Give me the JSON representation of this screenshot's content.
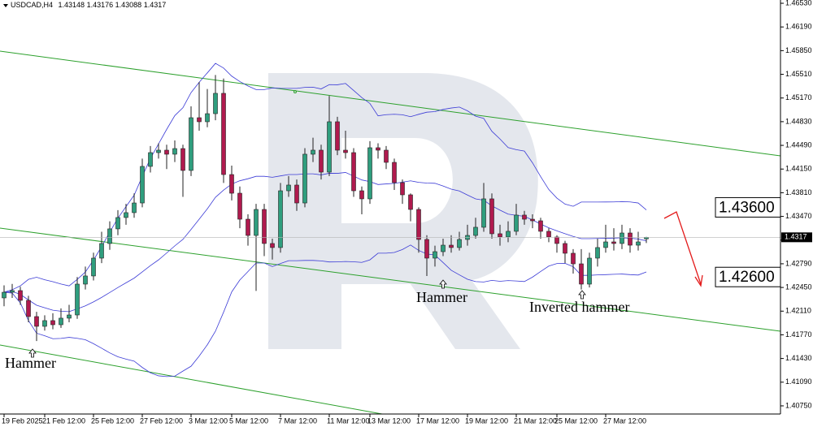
{
  "chart_data": {
    "type": "candlestick",
    "symbol": "USDCAD,H4",
    "categories": [
      "19 Feb 2025",
      null,
      null,
      null,
      null,
      "21 Feb 12:00",
      null,
      null,
      null,
      null,
      null,
      "25 Feb 12:00",
      null,
      null,
      null,
      null,
      null,
      "27 Feb 12:00",
      null,
      null,
      null,
      null,
      null,
      "3 Mar 12:00",
      null,
      null,
      null,
      null,
      "5 Mar 12:00",
      null,
      null,
      null,
      null,
      null,
      "7 Mar 12:00",
      null,
      null,
      null,
      null,
      null,
      "11 Mar 12:00",
      null,
      null,
      null,
      null,
      "13 Mar 12:00",
      null,
      null,
      null,
      null,
      null,
      "17 Mar 12:00",
      null,
      null,
      null,
      null,
      null,
      "19 Mar 12:00",
      null,
      null,
      null,
      null,
      null,
      "21 Mar 12:00",
      null,
      null,
      null,
      null,
      "25 Mar 12:00",
      null,
      null,
      null,
      null,
      null,
      "27 Mar 12:00",
      null,
      null,
      null,
      null,
      null
    ],
    "open": [
      1.423,
      1.42381,
      1.42405,
      1.42265,
      1.42032,
      1.41892,
      1.41974,
      1.41915,
      1.42009,
      1.42055,
      1.42498,
      1.42615,
      1.42871,
      1.43081,
      1.43291,
      1.43454,
      1.43524,
      1.43663,
      1.44188,
      1.44386,
      1.44421,
      1.44363,
      1.44444,
      1.4413,
      1.44887,
      1.44829,
      1.44945,
      1.45237,
      1.44071,
      1.43803,
      1.4343,
      1.43197,
      1.4357,
      1.43081,
      1.43023,
      1.43838,
      1.4392,
      1.43663,
      1.44363,
      1.44421,
      1.44106,
      1.44829,
      1.44421,
      1.44386,
      1.43838,
      1.43722,
      1.44456,
      1.44421,
      1.44246,
      1.43955,
      1.4378,
      1.4357,
      1.43139,
      1.42871,
      1.42964,
      1.43057,
      1.43023,
      1.43139,
      1.43197,
      1.43314,
      1.43722,
      1.43221,
      1.43174,
      1.43256,
      1.43489,
      1.4343,
      1.43407,
      1.43256,
      1.43174,
      1.43081,
      1.42941,
      1.42789,
      1.42498,
      1.42871,
      1.43023,
      1.43104,
      1.43081,
      1.43232,
      1.43057,
      1.43148
    ],
    "high": [
      1.4248,
      1.425,
      1.4246,
      1.4233,
      1.421,
      1.4205,
      1.4208,
      1.4215,
      1.422,
      1.426,
      1.4275,
      1.4295,
      1.4325,
      1.434,
      1.4356,
      1.4365,
      1.438,
      1.443,
      1.4448,
      1.4452,
      1.445,
      1.4456,
      1.445,
      1.4505,
      1.454,
      1.453,
      1.455,
      1.4545,
      1.442,
      1.439,
      1.435,
      1.4365,
      1.4365,
      1.4315,
      1.4395,
      1.4405,
      1.44,
      1.4445,
      1.446,
      1.445,
      1.452,
      1.449,
      1.447,
      1.4445,
      1.439,
      1.4455,
      1.4452,
      1.4448,
      1.443,
      1.44,
      1.438,
      1.436,
      1.432,
      1.4305,
      1.4315,
      1.432,
      1.4325,
      1.4335,
      1.4345,
      1.4395,
      1.438,
      1.4335,
      1.434,
      1.4365,
      1.4355,
      1.435,
      1.4345,
      1.433,
      1.432,
      1.4312,
      1.43,
      1.43,
      1.4295,
      1.4315,
      1.4335,
      1.433,
      1.4335,
      1.433,
      1.4325,
      1.43176
    ],
    "low": [
      1.4218,
      1.423,
      1.422,
      1.4195,
      1.41681,
      1.4183,
      1.4185,
      1.4187,
      1.4195,
      1.42,
      1.4242,
      1.4255,
      1.428,
      1.4299,
      1.432,
      1.4335,
      1.4345,
      1.436,
      1.441,
      1.443,
      1.4415,
      1.4425,
      1.4375,
      1.4405,
      1.447,
      1.4475,
      1.4485,
      1.4395,
      1.437,
      1.433,
      1.4305,
      1.424,
      1.429,
      1.4285,
      1.4295,
      1.4375,
      1.4355,
      1.436,
      1.4425,
      1.44,
      1.4405,
      1.4435,
      1.443,
      1.4375,
      1.435,
      1.4365,
      1.443,
      1.4415,
      1.4385,
      1.4365,
      1.434,
      1.4295,
      1.42615,
      1.4275,
      1.429,
      1.4295,
      1.4298,
      1.4305,
      1.4315,
      1.4325,
      1.4315,
      1.4305,
      1.431,
      1.432,
      1.4335,
      1.433,
      1.4315,
      1.431,
      1.4295,
      1.428,
      1.4265,
      1.4242,
      1.4245,
      1.4275,
      1.4295,
      1.4298,
      1.43,
      1.4295,
      1.4298,
      1.43088
    ],
    "close": [
      1.42381,
      1.42405,
      1.42265,
      1.42032,
      1.41892,
      1.41974,
      1.41915,
      1.42009,
      1.42055,
      1.42498,
      1.42615,
      1.42871,
      1.43081,
      1.43291,
      1.43454,
      1.43524,
      1.43663,
      1.44188,
      1.44386,
      1.44421,
      1.44363,
      1.44444,
      1.4413,
      1.44887,
      1.44829,
      1.44945,
      1.45237,
      1.44071,
      1.43803,
      1.4343,
      1.43197,
      1.4357,
      1.43081,
      1.43023,
      1.43838,
      1.4392,
      1.43663,
      1.44363,
      1.44421,
      1.44106,
      1.44829,
      1.44421,
      1.44386,
      1.43838,
      1.43722,
      1.44456,
      1.44421,
      1.44246,
      1.43955,
      1.4378,
      1.4357,
      1.43139,
      1.42871,
      1.42964,
      1.43057,
      1.43023,
      1.43139,
      1.43197,
      1.43314,
      1.43722,
      1.43221,
      1.43174,
      1.43256,
      1.43489,
      1.4343,
      1.43407,
      1.43256,
      1.43174,
      1.43081,
      1.42941,
      1.42789,
      1.42498,
      1.42871,
      1.43023,
      1.43104,
      1.43081,
      1.43232,
      1.43057,
      1.43104,
      1.4317
    ],
    "up_color": "#2f9e7e",
    "down_color": "#b01a4e",
    "band_color": "#3b3bd6",
    "ylim": [
      1.40633,
      1.46577
    ],
    "yticks": [
      {
        "value": 1.4653,
        "label": "1.46530"
      },
      {
        "value": 1.4619,
        "label": "1.46190"
      },
      {
        "value": 1.4585,
        "label": "1.45850"
      },
      {
        "value": 1.4551,
        "label": "1.45510"
      },
      {
        "value": 1.4517,
        "label": "1.45170"
      },
      {
        "value": 1.4483,
        "label": "1.44830"
      },
      {
        "value": 1.4449,
        "label": "1.44490"
      },
      {
        "value": 1.4415,
        "label": "1.44150"
      },
      {
        "value": 1.4381,
        "label": "1.43810"
      },
      {
        "value": 1.4347,
        "label": "1.43470"
      },
      {
        "value": 1.4313,
        "label": "1.43130"
      },
      {
        "value": 1.4279,
        "label": "1.42790"
      },
      {
        "value": 1.4245,
        "label": "1.42450"
      },
      {
        "value": 1.4211,
        "label": "1.42110"
      },
      {
        "value": 1.4177,
        "label": "1.41770"
      },
      {
        "value": 1.4143,
        "label": "1.41430"
      },
      {
        "value": 1.4109,
        "label": "1.41090"
      },
      {
        "value": 1.4075,
        "label": "1.40750"
      }
    ],
    "levels": [
      {
        "value": 1.436,
        "label": "1.43600"
      },
      {
        "value": 1.426,
        "label": "1.42600"
      }
    ],
    "annotations": [
      "Hammer",
      "Hammer",
      "Inverted hammer"
    ]
  }
}
